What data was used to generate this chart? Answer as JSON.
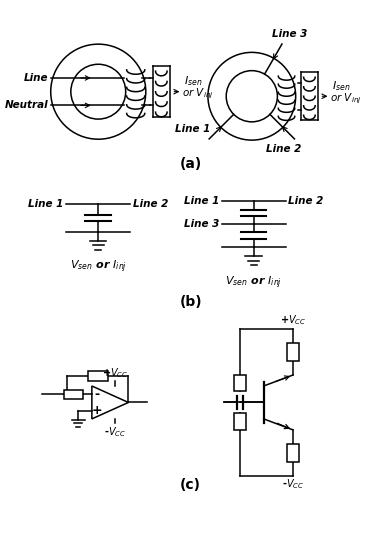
{
  "bg_color": "#ffffff",
  "line_color": "#000000",
  "title_a": "(a)",
  "title_b": "(b)",
  "title_c": "(c)"
}
